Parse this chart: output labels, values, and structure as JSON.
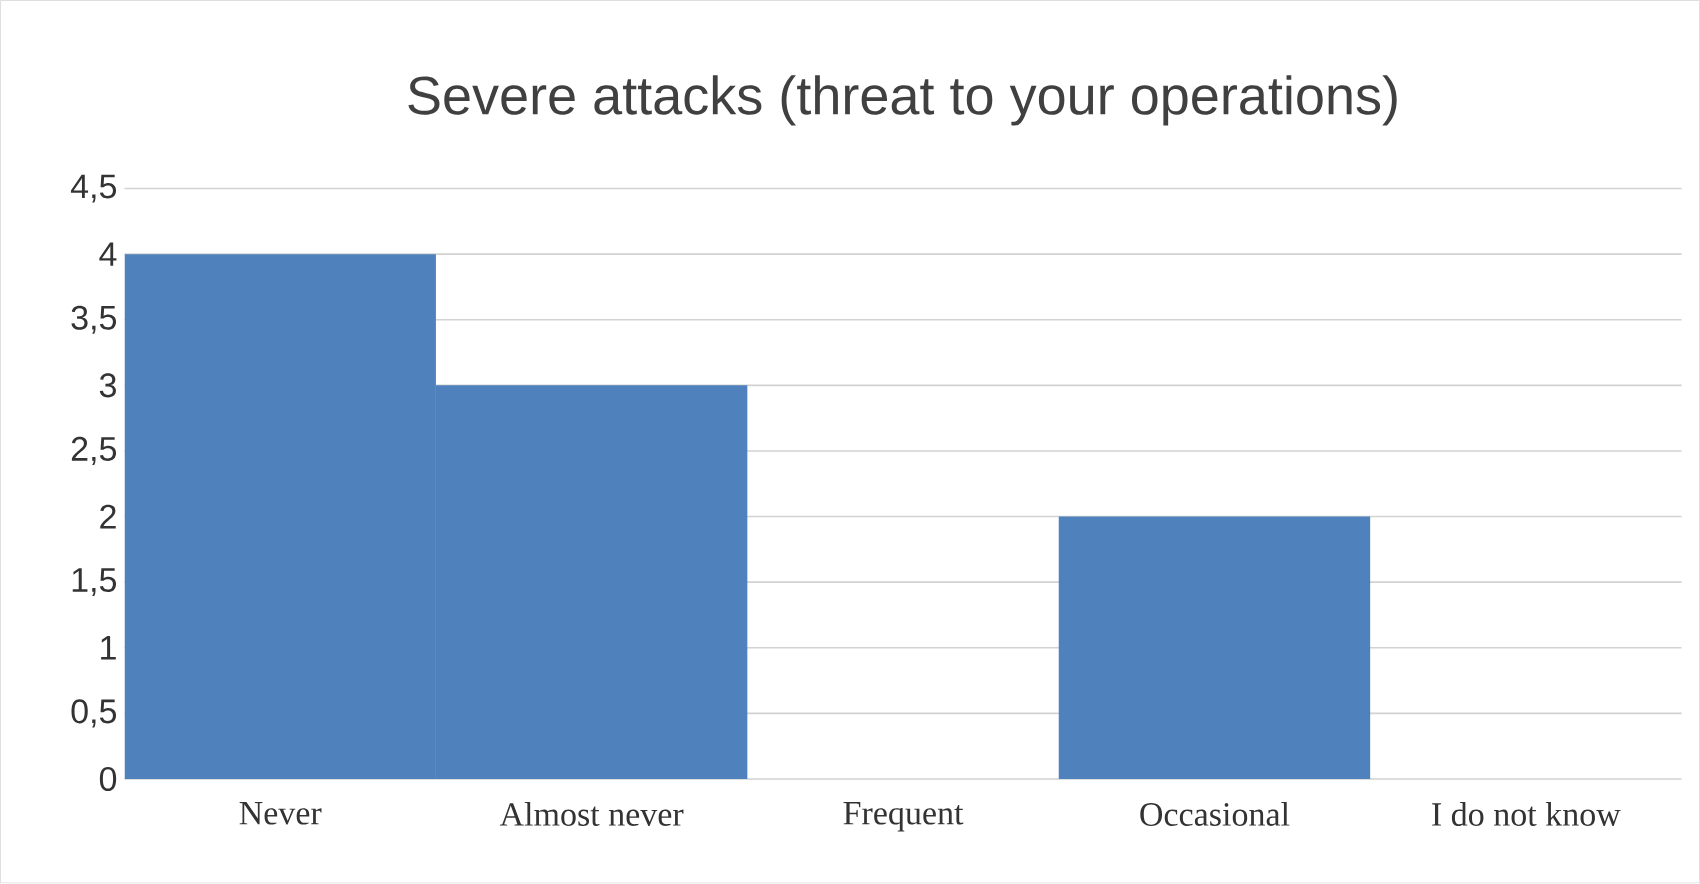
{
  "chart_data": {
    "type": "bar",
    "title": "Severe attacks (threat to your operations)",
    "categories": [
      "Never",
      "Almost never",
      "Frequent",
      "Occasional",
      "I do not know"
    ],
    "values": [
      4,
      3,
      0,
      2,
      0
    ],
    "color": "#4f81bd",
    "ylim": [
      0,
      4.5
    ],
    "yticks": [
      0,
      {
        "value": 0.5,
        "label": "0,5"
      },
      1,
      {
        "value": 1.5,
        "label": "1,5"
      },
      2,
      {
        "value": 2.5,
        "label": "2,5"
      },
      3,
      {
        "value": 3.5,
        "label": "3,5"
      },
      4,
      {
        "value": 4.5,
        "label": "4,5"
      }
    ],
    "grid": "y"
  }
}
